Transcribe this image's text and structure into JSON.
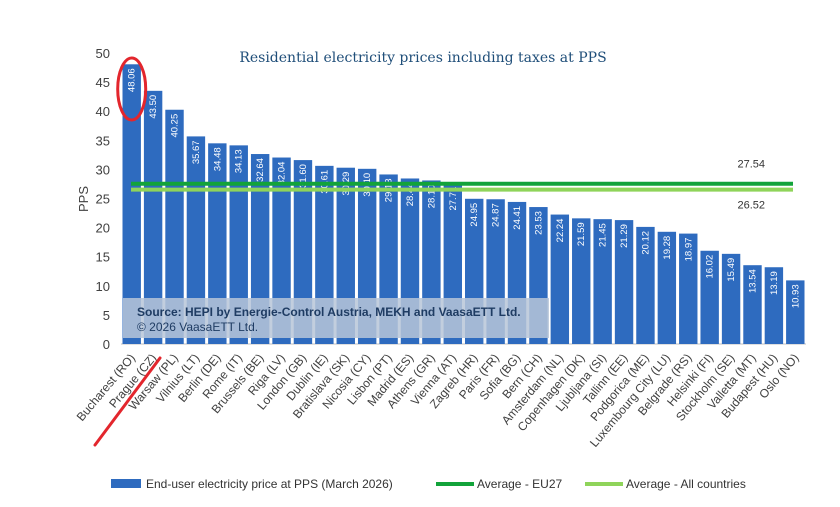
{
  "chart_data": {
    "type": "bar",
    "title": "Residential electricity prices including taxes at PPS",
    "ylabel": "PPS",
    "xlabel": "",
    "ylim": [
      0,
      50
    ],
    "yticks": [
      0,
      5,
      10,
      15,
      20,
      25,
      30,
      35,
      40,
      45,
      50
    ],
    "categories": [
      "Bucharest (RO)",
      "Prague (CZ)",
      "Warsaw (PL)",
      "Vilnius (LT)",
      "Berlin (DE)",
      "Rome (IT)",
      "Brussels (BE)",
      "Riga (LV)",
      "London (GB)",
      "Dublin (IE)",
      "Bratislava (SK)",
      "Nicosia (CY)",
      "Lisbon (PT)",
      "Madrid (ES)",
      "Athens (GR)",
      "Vienna (AT)",
      "Zagreb (HR)",
      "Paris (FR)",
      "Sofia (BG)",
      "Bern (CH)",
      "Amsterdam (NL)",
      "Copenhagen (DK)",
      "Ljubljana (SI)",
      "Tallinn (EE)",
      "Podgorica (ME)",
      "Luxembourg City (LU)",
      "Belgrade (RS)",
      "Helsinki (FI)",
      "Stockholm (SE)",
      "Valletta (MT)",
      "Budapest (HU)",
      "Oslo (NO)"
    ],
    "series": [
      {
        "name": "End-user electricity price at PPS (March 2026)",
        "values": [
          48.06,
          43.5,
          40.25,
          35.67,
          34.48,
          34.13,
          32.64,
          32.04,
          31.6,
          30.61,
          30.29,
          30.1,
          29.13,
          28.44,
          28.1,
          27.71,
          24.95,
          24.87,
          24.41,
          23.53,
          22.24,
          21.59,
          21.45,
          21.29,
          20.12,
          19.28,
          18.97,
          16.02,
          15.49,
          13.54,
          13.19,
          10.93
        ],
        "labels": [
          "48.06",
          "43.50",
          "40.25",
          "35.67",
          "34.48",
          "34.13",
          "32.64",
          "32.04",
          "31.60",
          "30.61",
          "30.29",
          "30.10",
          "29.13",
          "28.44",
          "28.10",
          "27.71",
          "24.95",
          "24.87",
          "24.41",
          "23.53",
          "22.24",
          "21.59",
          "21.45",
          "21.29",
          "20.12",
          "19.28",
          "18.97",
          "16.02",
          "15.49",
          "13.54",
          "13.19",
          "10.93"
        ],
        "color": "#2e6bbf"
      }
    ],
    "reference_lines": [
      {
        "name": "Average - EU27",
        "value": 27.54,
        "label": "27.54",
        "color": "#12a33a"
      },
      {
        "name": "Average - All countries",
        "value": 26.52,
        "label": "26.52",
        "color": "#8fd45a"
      }
    ],
    "highlight": {
      "category": "Bucharest (RO)",
      "color": "#e3262d"
    },
    "source": {
      "line1": "Source: HEPI by Energie-Control Austria, MEKH and VaasaETT Ltd.",
      "line2": "© 2026 VaasaETT Ltd."
    },
    "legend": "bottom",
    "grid": false
  }
}
